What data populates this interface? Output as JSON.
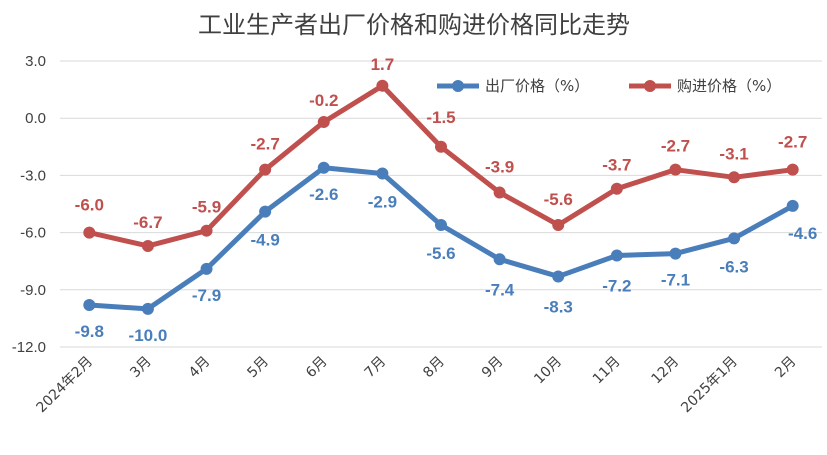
{
  "chart_data": {
    "type": "line",
    "title": "工业生产者出厂价格和购进价格同比走势",
    "categories": [
      "2024年2月",
      "3月",
      "4月",
      "5月",
      "6月",
      "7月",
      "8月",
      "9月",
      "10月",
      "11月",
      "12月",
      "2025年1月",
      "2月"
    ],
    "series": [
      {
        "name": "出厂价格（%）",
        "color": "#4a7ebb",
        "values": [
          -9.8,
          -10.0,
          -7.9,
          -4.9,
          -2.6,
          -2.9,
          -5.6,
          -7.4,
          -8.3,
          -7.2,
          -7.1,
          -6.3,
          -4.6
        ],
        "labels": [
          "-9.8",
          "-10.0",
          "-7.9",
          "-4.9",
          "-2.6",
          "-2.9",
          "-5.6",
          "-7.4",
          "-8.3",
          "-7.2",
          "-7.1",
          "-6.3",
          "-4.6"
        ]
      },
      {
        "name": "购进价格（%）",
        "color": "#c0504d",
        "values": [
          -6.0,
          -6.7,
          -5.9,
          -2.7,
          -0.2,
          1.7,
          -1.5,
          -3.9,
          -5.6,
          -3.7,
          -2.7,
          -3.1,
          -2.7
        ],
        "labels": [
          "-6.0",
          "-6.7",
          "-5.9",
          "-2.7",
          "-0.2",
          "1.7",
          "-1.5",
          "-3.9",
          "-5.6",
          "-3.7",
          "-2.7",
          "-3.1",
          "-2.7"
        ]
      }
    ],
    "ylim": [
      -12.0,
      3.0
    ],
    "yticks": [
      "3.0",
      "0.0",
      "-3.0",
      "-6.0",
      "-9.0",
      "-12.0"
    ],
    "ytick_values": [
      3,
      0,
      -3,
      -6,
      -9,
      -12
    ],
    "grid": true,
    "legend_position": "top-right"
  }
}
